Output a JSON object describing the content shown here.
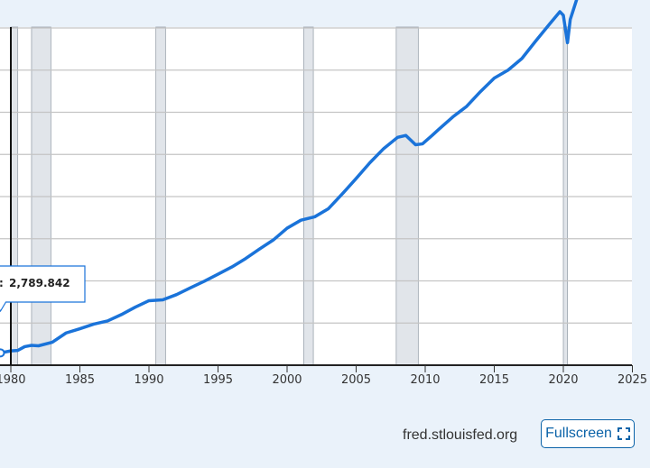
{
  "chart_data": {
    "type": "line",
    "title": "",
    "xlabel": "",
    "ylabel": "",
    "x_ticks": [
      "1980",
      "1985",
      "1990",
      "1995",
      "2000",
      "2005",
      "2010",
      "2015",
      "2020",
      "2025"
    ],
    "recessions": [
      [
        1980.0,
        1980.5
      ],
      [
        1981.5,
        1982.9
      ],
      [
        1990.5,
        1991.2
      ],
      [
        2001.2,
        2001.9
      ],
      [
        2007.9,
        2009.5
      ],
      [
        2020.0,
        2020.3
      ]
    ],
    "series": [
      {
        "color": "#1a73d9",
        "points": [
          [
            1979.25,
            0.585
          ],
          [
            1980.0,
            0.68
          ],
          [
            1980.5,
            0.7
          ],
          [
            1981.0,
            0.88
          ],
          [
            1981.5,
            0.94
          ],
          [
            1982.0,
            0.92
          ],
          [
            1983.0,
            1.09
          ],
          [
            1984.0,
            1.53
          ],
          [
            1985.0,
            1.73
          ],
          [
            1986.0,
            1.95
          ],
          [
            1987.0,
            2.1
          ],
          [
            1988.0,
            2.4
          ],
          [
            1989.0,
            2.75
          ],
          [
            1990.0,
            3.06
          ],
          [
            1991.0,
            3.1
          ],
          [
            1992.0,
            3.35
          ],
          [
            1993.0,
            3.67
          ],
          [
            1994.0,
            3.98
          ],
          [
            1995.0,
            4.32
          ],
          [
            1996.0,
            4.66
          ],
          [
            1997.0,
            5.06
          ],
          [
            1998.0,
            5.51
          ],
          [
            1999.0,
            5.94
          ],
          [
            2000.0,
            6.5
          ],
          [
            2001.0,
            6.88
          ],
          [
            2002.0,
            7.04
          ],
          [
            2003.0,
            7.43
          ],
          [
            2004.0,
            8.13
          ],
          [
            2005.0,
            8.86
          ],
          [
            2006.0,
            9.61
          ],
          [
            2007.0,
            10.28
          ],
          [
            2008.0,
            10.81
          ],
          [
            2008.6,
            10.9
          ],
          [
            2009.3,
            10.46
          ],
          [
            2009.8,
            10.5
          ],
          [
            2010.5,
            10.9
          ],
          [
            2011.0,
            11.2
          ],
          [
            2012.0,
            11.78
          ],
          [
            2013.0,
            12.28
          ],
          [
            2014.0,
            12.98
          ],
          [
            2015.0,
            13.62
          ],
          [
            2016.0,
            14.0
          ],
          [
            2017.0,
            14.55
          ],
          [
            2018.0,
            15.38
          ],
          [
            2019.0,
            16.18
          ],
          [
            2019.75,
            16.77
          ],
          [
            2020.0,
            16.6
          ],
          [
            2020.3,
            15.3
          ],
          [
            2020.5,
            16.4
          ],
          [
            2021.0,
            17.42
          ],
          [
            2022.0,
            19.55
          ],
          [
            2023.0,
            21.13
          ],
          [
            2024.0,
            22.4
          ],
          [
            2025.0,
            23.5
          ]
        ]
      }
    ],
    "tooltip": {
      "x": 1979.25,
      "y": 0.585,
      "label": "2,789.842"
    },
    "grid": true
  },
  "footer": {
    "source": "fred.stlouisfed.org",
    "fullscreen_label": "Fullscreen"
  }
}
